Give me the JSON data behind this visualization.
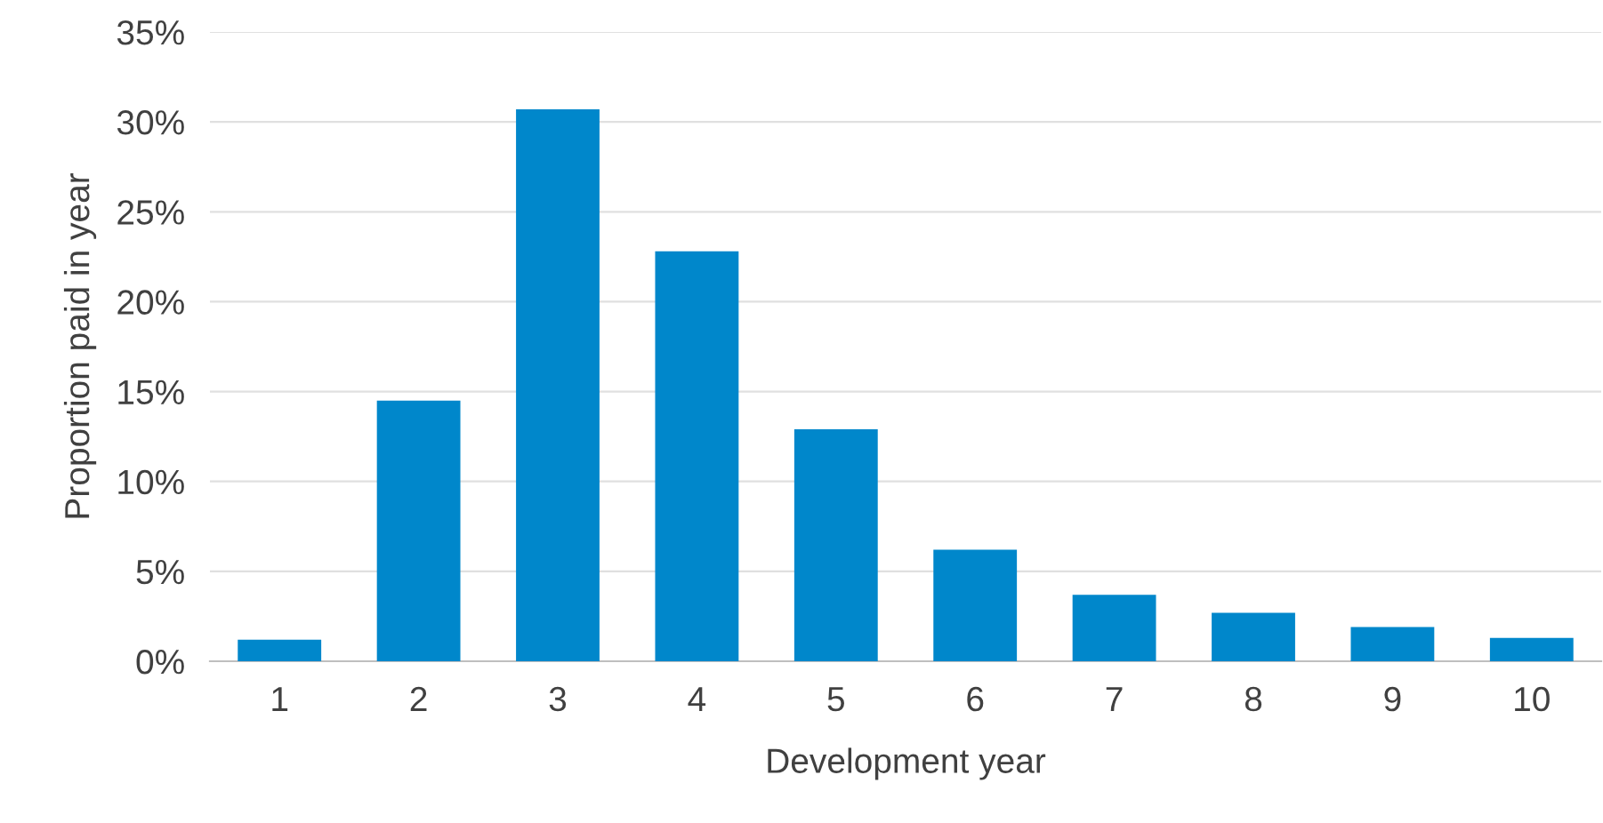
{
  "chart_data": {
    "type": "bar",
    "xlabel": "Development year",
    "ylabel": "Proportion paid in year",
    "categories": [
      "1",
      "2",
      "3",
      "4",
      "5",
      "6",
      "7",
      "8",
      "9",
      "10"
    ],
    "values": [
      1.2,
      14.5,
      30.7,
      22.8,
      12.9,
      6.2,
      3.7,
      2.7,
      1.9,
      1.3
    ],
    "color": "#0087cb",
    "ylim": [
      0,
      35
    ],
    "yticks": [
      {
        "value": 0,
        "label": "0%"
      },
      {
        "value": 5,
        "label": "5%"
      },
      {
        "value": 10,
        "label": "10%"
      },
      {
        "value": 15,
        "label": "15%"
      },
      {
        "value": 20,
        "label": "20%"
      },
      {
        "value": 25,
        "label": "25%"
      },
      {
        "value": 30,
        "label": "30%"
      },
      {
        "value": 35,
        "label": "35%"
      }
    ],
    "grid": "y"
  }
}
